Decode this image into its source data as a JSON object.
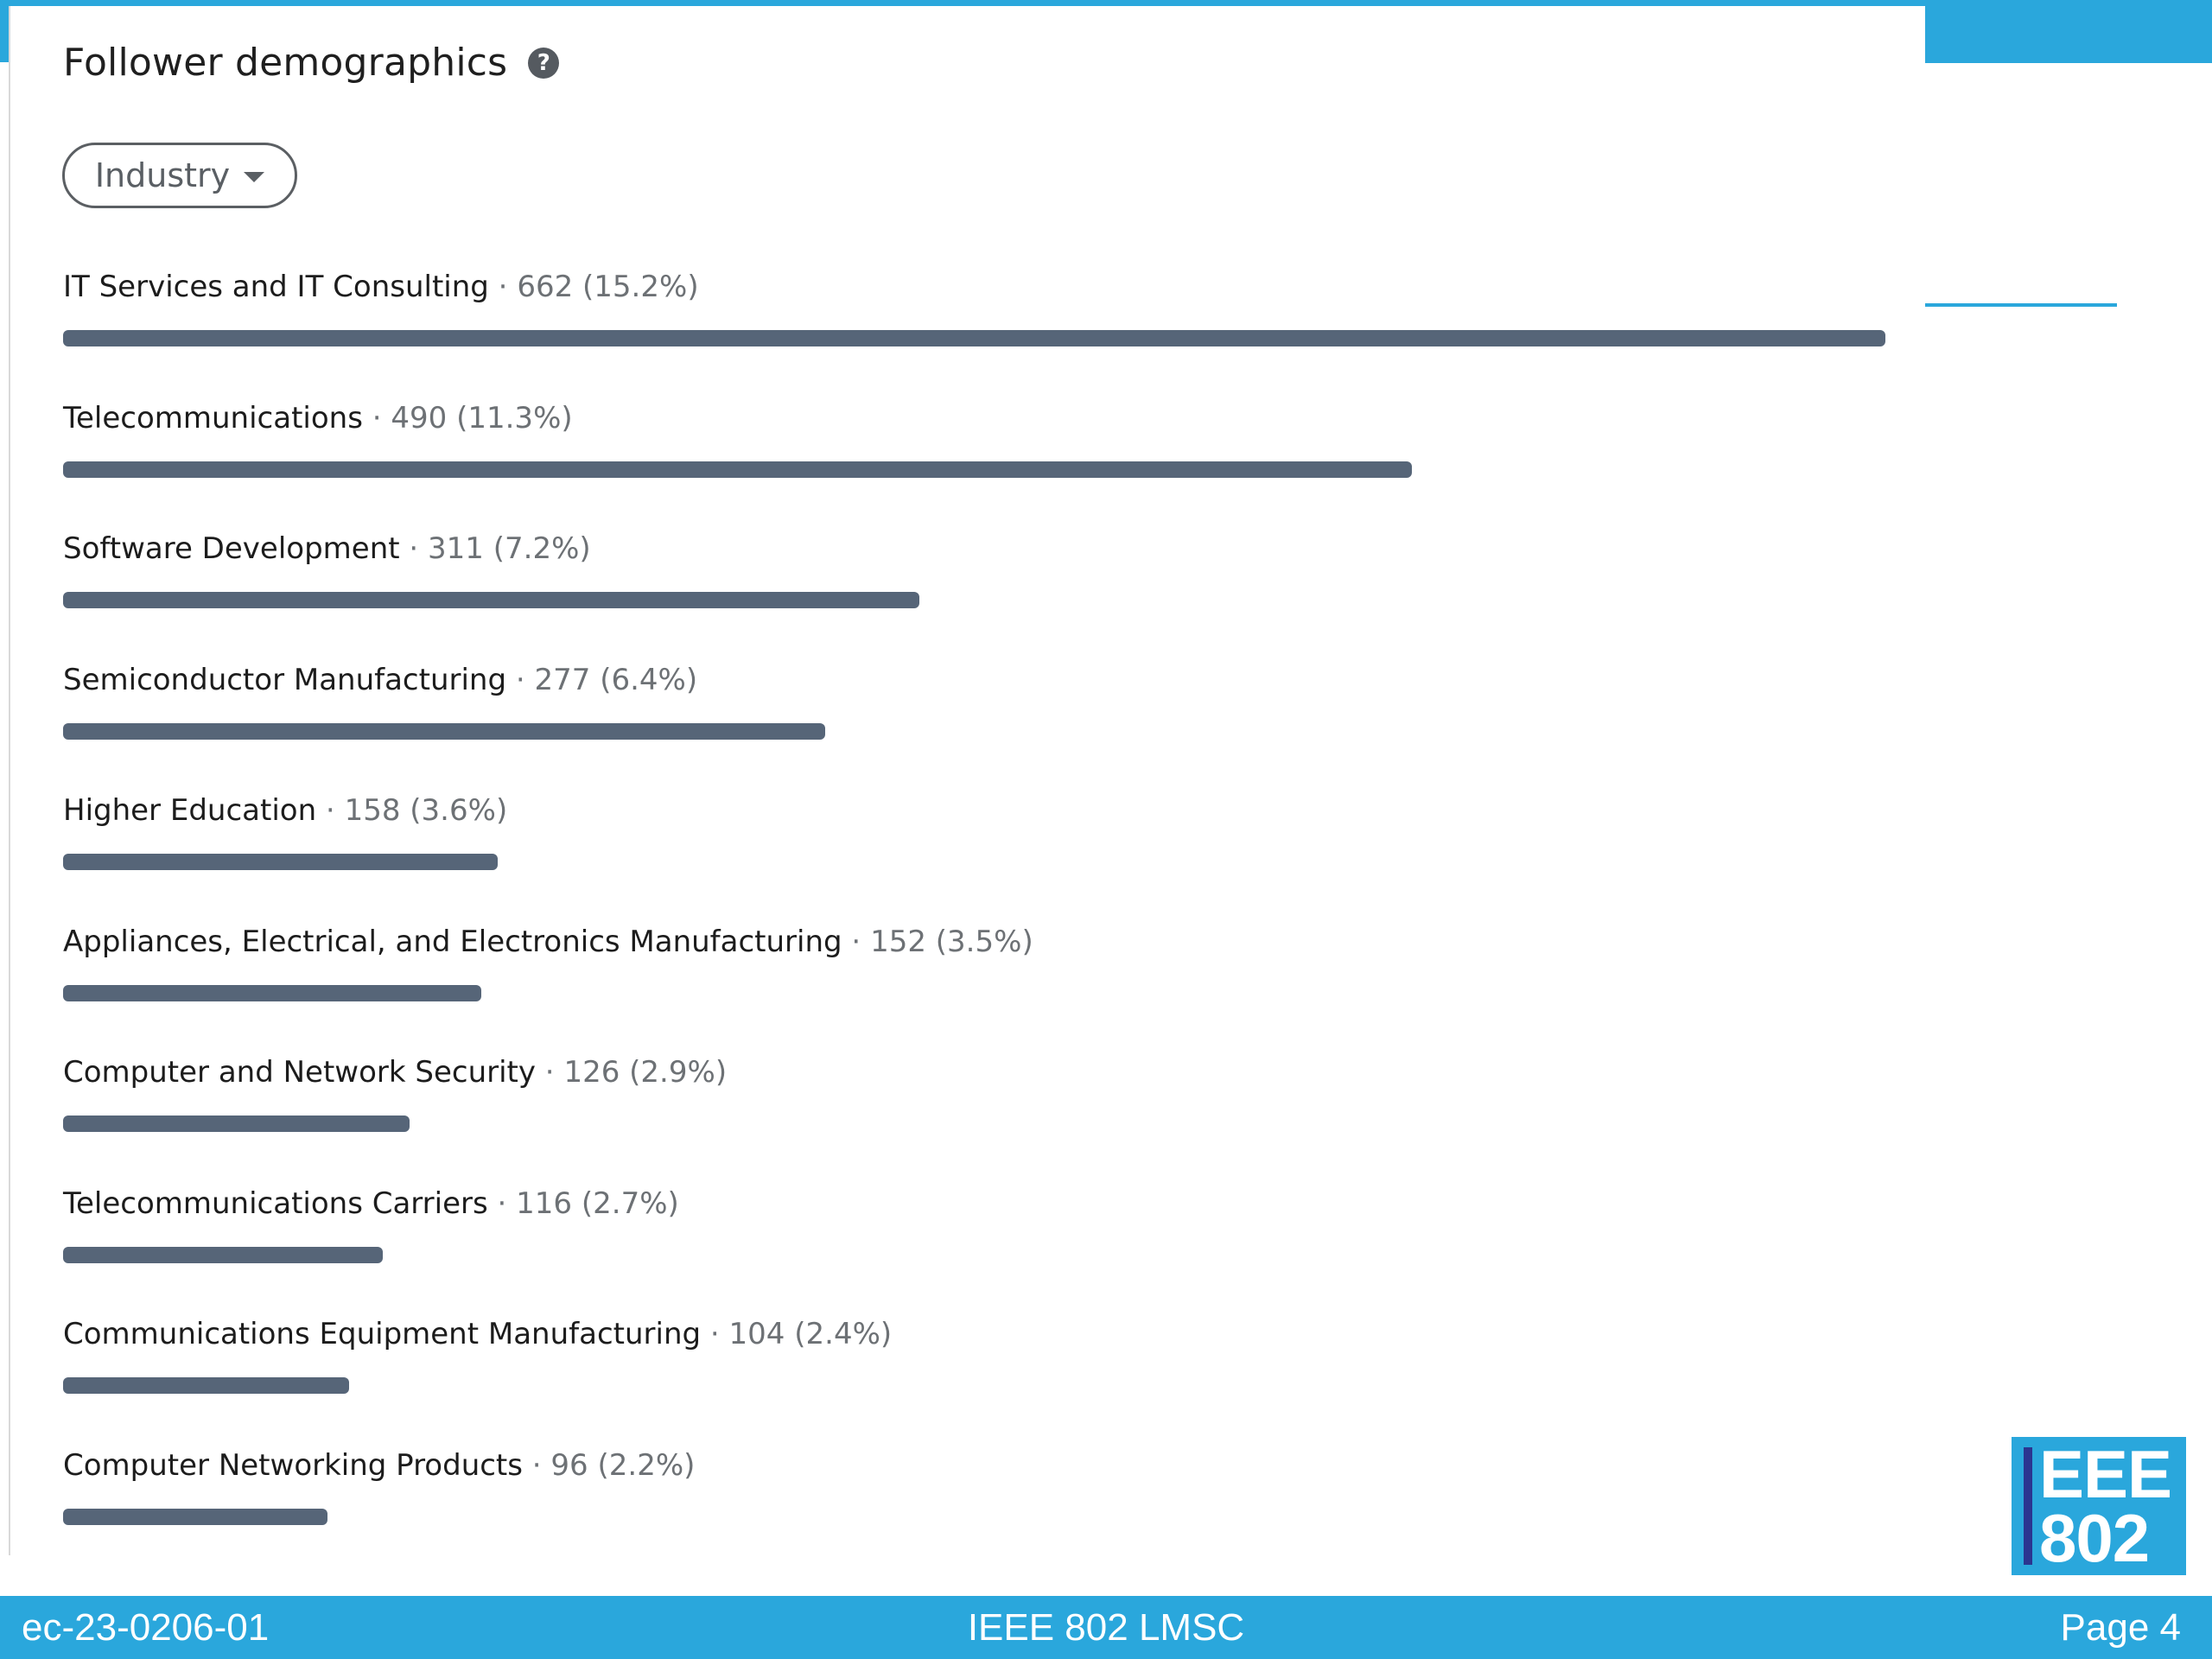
{
  "panel": {
    "title": "Follower demographics",
    "help_icon": "question-circle-icon",
    "dropdown": {
      "selected": "Industry",
      "icon": "caret-down-icon"
    }
  },
  "chart_data": {
    "type": "bar",
    "orientation": "horizontal",
    "categories": [
      "IT Services and IT Consulting",
      "Telecommunications",
      "Software Development",
      "Semiconductor Manufacturing",
      "Higher Education",
      "Appliances, Electrical, and Electronics Manufacturing",
      "Computer and Network Security",
      "Telecommunications Carriers",
      "Communications Equipment Manufacturing",
      "Computer Networking Products"
    ],
    "values": [
      662,
      490,
      311,
      277,
      158,
      152,
      126,
      116,
      104,
      96
    ],
    "percent_labels": [
      "15.2%",
      "11.3%",
      "7.2%",
      "6.4%",
      "3.6%",
      "3.5%",
      "2.9%",
      "2.7%",
      "2.4%",
      "2.2%"
    ],
    "bar_color": "#566578"
  },
  "footer": {
    "left": "ec-23-0206-01",
    "center": "IEEE 802 LMSC",
    "right": "Page 4"
  },
  "logo": {
    "line1": "EEE",
    "line2": "802"
  },
  "colors": {
    "accent": "#2aa7dc",
    "logo_bar": "#2b3590"
  }
}
